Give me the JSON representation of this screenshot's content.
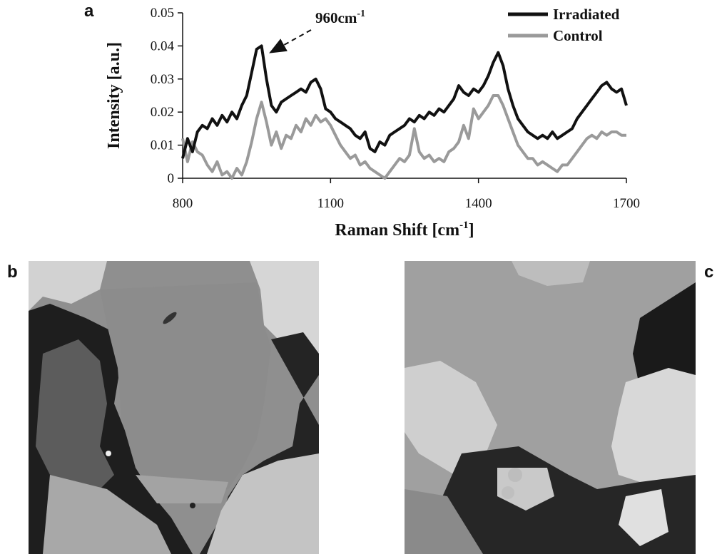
{
  "panels": {
    "a": "a",
    "b": "b",
    "c": "c"
  },
  "chart_data": {
    "type": "line",
    "xlabel": "Raman Shift [cm",
    "xlabel_sup": "-1",
    "xlabel_end": "]",
    "ylabel": "Intensity [a.u.]",
    "xlim": [
      800,
      1700
    ],
    "ylim": [
      0,
      0.05
    ],
    "x_ticks": [
      "800",
      "1100",
      "1400",
      "1700"
    ],
    "y_ticks": [
      "0",
      "0.01",
      "0.02",
      "0.03",
      "0.04",
      "0.05"
    ],
    "legend_position": "top-right",
    "grid": false,
    "annotation": {
      "text": "960cm",
      "sup": "-1",
      "x": 960,
      "y": 0.0395
    },
    "series": [
      {
        "name": "Irradiated",
        "color": "#111111",
        "points": [
          [
            800,
            0.006
          ],
          [
            810,
            0.012
          ],
          [
            820,
            0.008
          ],
          [
            830,
            0.014
          ],
          [
            840,
            0.016
          ],
          [
            850,
            0.015
          ],
          [
            860,
            0.018
          ],
          [
            870,
            0.016
          ],
          [
            880,
            0.019
          ],
          [
            890,
            0.017
          ],
          [
            900,
            0.02
          ],
          [
            910,
            0.018
          ],
          [
            920,
            0.022
          ],
          [
            930,
            0.025
          ],
          [
            940,
            0.032
          ],
          [
            950,
            0.039
          ],
          [
            960,
            0.04
          ],
          [
            970,
            0.03
          ],
          [
            980,
            0.022
          ],
          [
            990,
            0.02
          ],
          [
            1000,
            0.023
          ],
          [
            1010,
            0.024
          ],
          [
            1020,
            0.025
          ],
          [
            1030,
            0.026
          ],
          [
            1040,
            0.027
          ],
          [
            1050,
            0.026
          ],
          [
            1060,
            0.029
          ],
          [
            1070,
            0.03
          ],
          [
            1080,
            0.027
          ],
          [
            1090,
            0.021
          ],
          [
            1100,
            0.02
          ],
          [
            1110,
            0.018
          ],
          [
            1120,
            0.017
          ],
          [
            1130,
            0.016
          ],
          [
            1140,
            0.015
          ],
          [
            1150,
            0.013
          ],
          [
            1160,
            0.012
          ],
          [
            1170,
            0.014
          ],
          [
            1180,
            0.009
          ],
          [
            1190,
            0.008
          ],
          [
            1200,
            0.011
          ],
          [
            1210,
            0.01
          ],
          [
            1220,
            0.013
          ],
          [
            1230,
            0.014
          ],
          [
            1240,
            0.015
          ],
          [
            1250,
            0.016
          ],
          [
            1260,
            0.018
          ],
          [
            1270,
            0.017
          ],
          [
            1280,
            0.019
          ],
          [
            1290,
            0.018
          ],
          [
            1300,
            0.02
          ],
          [
            1310,
            0.019
          ],
          [
            1320,
            0.021
          ],
          [
            1330,
            0.02
          ],
          [
            1340,
            0.022
          ],
          [
            1350,
            0.024
          ],
          [
            1360,
            0.028
          ],
          [
            1370,
            0.026
          ],
          [
            1380,
            0.025
          ],
          [
            1390,
            0.027
          ],
          [
            1400,
            0.026
          ],
          [
            1410,
            0.028
          ],
          [
            1420,
            0.031
          ],
          [
            1430,
            0.035
          ],
          [
            1440,
            0.038
          ],
          [
            1450,
            0.034
          ],
          [
            1460,
            0.027
          ],
          [
            1470,
            0.022
          ],
          [
            1480,
            0.018
          ],
          [
            1490,
            0.016
          ],
          [
            1500,
            0.014
          ],
          [
            1510,
            0.013
          ],
          [
            1520,
            0.012
          ],
          [
            1530,
            0.013
          ],
          [
            1540,
            0.012
          ],
          [
            1550,
            0.014
          ],
          [
            1560,
            0.012
          ],
          [
            1570,
            0.013
          ],
          [
            1580,
            0.014
          ],
          [
            1590,
            0.015
          ],
          [
            1600,
            0.018
          ],
          [
            1610,
            0.02
          ],
          [
            1620,
            0.022
          ],
          [
            1630,
            0.024
          ],
          [
            1640,
            0.026
          ],
          [
            1650,
            0.028
          ],
          [
            1660,
            0.029
          ],
          [
            1670,
            0.027
          ],
          [
            1680,
            0.026
          ],
          [
            1690,
            0.027
          ],
          [
            1700,
            0.022
          ]
        ]
      },
      {
        "name": "Control",
        "color": "#9a9a9a",
        "points": [
          [
            800,
            0.012
          ],
          [
            810,
            0.005
          ],
          [
            820,
            0.011
          ],
          [
            830,
            0.008
          ],
          [
            840,
            0.007
          ],
          [
            850,
            0.004
          ],
          [
            860,
            0.002
          ],
          [
            870,
            0.005
          ],
          [
            880,
            0.001
          ],
          [
            890,
            0.002
          ],
          [
            900,
            0.0
          ],
          [
            910,
            0.003
          ],
          [
            920,
            0.001
          ],
          [
            930,
            0.005
          ],
          [
            940,
            0.011
          ],
          [
            950,
            0.018
          ],
          [
            960,
            0.023
          ],
          [
            970,
            0.017
          ],
          [
            980,
            0.01
          ],
          [
            990,
            0.014
          ],
          [
            1000,
            0.009
          ],
          [
            1010,
            0.013
          ],
          [
            1020,
            0.012
          ],
          [
            1030,
            0.016
          ],
          [
            1040,
            0.014
          ],
          [
            1050,
            0.018
          ],
          [
            1060,
            0.016
          ],
          [
            1070,
            0.019
          ],
          [
            1080,
            0.017
          ],
          [
            1090,
            0.018
          ],
          [
            1100,
            0.016
          ],
          [
            1110,
            0.013
          ],
          [
            1120,
            0.01
          ],
          [
            1130,
            0.008
          ],
          [
            1140,
            0.006
          ],
          [
            1150,
            0.007
          ],
          [
            1160,
            0.004
          ],
          [
            1170,
            0.005
          ],
          [
            1180,
            0.003
          ],
          [
            1190,
            0.002
          ],
          [
            1200,
            0.001
          ],
          [
            1210,
            0.0
          ],
          [
            1220,
            0.002
          ],
          [
            1230,
            0.004
          ],
          [
            1240,
            0.006
          ],
          [
            1250,
            0.005
          ],
          [
            1260,
            0.007
          ],
          [
            1270,
            0.015
          ],
          [
            1280,
            0.008
          ],
          [
            1290,
            0.006
          ],
          [
            1300,
            0.007
          ],
          [
            1310,
            0.005
          ],
          [
            1320,
            0.006
          ],
          [
            1330,
            0.005
          ],
          [
            1340,
            0.008
          ],
          [
            1350,
            0.009
          ],
          [
            1360,
            0.011
          ],
          [
            1370,
            0.016
          ],
          [
            1380,
            0.012
          ],
          [
            1390,
            0.021
          ],
          [
            1400,
            0.018
          ],
          [
            1410,
            0.02
          ],
          [
            1420,
            0.022
          ],
          [
            1430,
            0.025
          ],
          [
            1440,
            0.025
          ],
          [
            1450,
            0.022
          ],
          [
            1460,
            0.018
          ],
          [
            1470,
            0.014
          ],
          [
            1480,
            0.01
          ],
          [
            1490,
            0.008
          ],
          [
            1500,
            0.006
          ],
          [
            1510,
            0.006
          ],
          [
            1520,
            0.004
          ],
          [
            1530,
            0.005
          ],
          [
            1540,
            0.004
          ],
          [
            1550,
            0.003
          ],
          [
            1560,
            0.002
          ],
          [
            1570,
            0.004
          ],
          [
            1580,
            0.004
          ],
          [
            1590,
            0.006
          ],
          [
            1600,
            0.008
          ],
          [
            1610,
            0.01
          ],
          [
            1620,
            0.012
          ],
          [
            1630,
            0.013
          ],
          [
            1640,
            0.012
          ],
          [
            1650,
            0.014
          ],
          [
            1660,
            0.013
          ],
          [
            1670,
            0.014
          ],
          [
            1680,
            0.014
          ],
          [
            1690,
            0.013
          ],
          [
            1700,
            0.013
          ]
        ]
      }
    ]
  }
}
